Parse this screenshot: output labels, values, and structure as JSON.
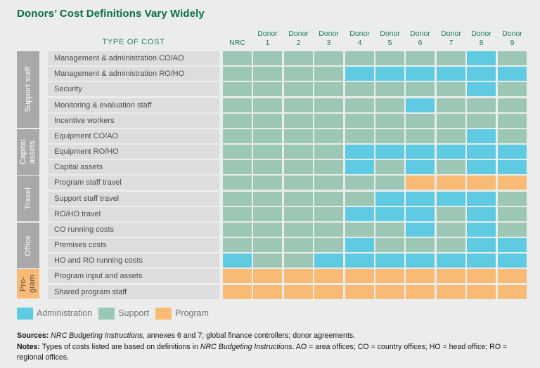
{
  "title": "Donors’ Cost Definitions Vary Widely",
  "table_header": {
    "type_of_cost": "TYPE OF COST"
  },
  "colors": {
    "administration": "#5fcbe3",
    "support": "#9bc7b4",
    "program": "#f9ba76",
    "page_bg": "#ebedec",
    "row_label_bg": "#dcdddc",
    "group_box_bg": "#a9a9a9",
    "group_box_text": "#ffffff",
    "program_group_text": "#4f4f4f",
    "title_text": "#0a6e42",
    "header_text": "#1f7b52",
    "row_label_text": "#4c4c4c",
    "legend_text": "#757575",
    "footer_text": "#141414"
  },
  "chart_data": {
    "type": "heatmap",
    "title": "Donors’ Cost Definitions Vary Widely",
    "columns": [
      "NRC",
      "Donor 1",
      "Donor 2",
      "Donor 3",
      "Donor 4",
      "Donor 5",
      "Donor 6",
      "Donor 7",
      "Donor 8",
      "Donor 9"
    ],
    "legend_position": "bottom",
    "categories_legend": [
      {
        "key": "A",
        "label": "Administration",
        "color": "#5fcbe3"
      },
      {
        "key": "S",
        "label": "Support",
        "color": "#9bc7b4"
      },
      {
        "key": "P",
        "label": "Program",
        "color": "#f9ba76"
      }
    ],
    "row_groups": [
      {
        "label": "Support staff",
        "span": 5,
        "style": "gray"
      },
      {
        "label": "Capital assets",
        "span": 3,
        "style": "gray"
      },
      {
        "label": "Travel",
        "span": 3,
        "style": "gray"
      },
      {
        "label": "Office",
        "span": 3,
        "style": "gray"
      },
      {
        "label": "Pro-gram",
        "span": 2,
        "style": "program"
      }
    ],
    "rows": [
      {
        "label": "Management & administration CO/AO",
        "group": "Support staff",
        "cells": [
          "S",
          "S",
          "S",
          "S",
          "S",
          "S",
          "S",
          "S",
          "A",
          "S"
        ]
      },
      {
        "label": "Management & administration RO/HO",
        "group": "Support staff",
        "cells": [
          "S",
          "S",
          "S",
          "S",
          "A",
          "A",
          "A",
          "A",
          "A",
          "A"
        ]
      },
      {
        "label": "Security",
        "group": "Support staff",
        "cells": [
          "S",
          "S",
          "S",
          "S",
          "S",
          "S",
          "S",
          "S",
          "A",
          "S"
        ]
      },
      {
        "label": "Monitoring & evaluation staff",
        "group": "Support staff",
        "cells": [
          "S",
          "S",
          "S",
          "S",
          "S",
          "S",
          "A",
          "S",
          "S",
          "S"
        ]
      },
      {
        "label": "Incentive workers",
        "group": "Support staff",
        "cells": [
          "S",
          "S",
          "S",
          "S",
          "S",
          "S",
          "S",
          "S",
          "S",
          "S"
        ]
      },
      {
        "label": "Equipment CO/AO",
        "group": "Capital assets",
        "cells": [
          "S",
          "S",
          "S",
          "S",
          "S",
          "S",
          "S",
          "S",
          "A",
          "S"
        ]
      },
      {
        "label": "Equipment RO/HO",
        "group": "Capital assets",
        "cells": [
          "S",
          "S",
          "S",
          "S",
          "A",
          "A",
          "A",
          "A",
          "A",
          "A"
        ]
      },
      {
        "label": "Capital assets",
        "group": "Capital assets",
        "cells": [
          "S",
          "S",
          "S",
          "S",
          "A",
          "S",
          "A",
          "S",
          "A",
          "A"
        ]
      },
      {
        "label": "Program staff travel",
        "group": "Travel",
        "cells": [
          "S",
          "S",
          "S",
          "S",
          "S",
          "S",
          "P",
          "P",
          "P",
          "P"
        ]
      },
      {
        "label": "Support staff travel",
        "group": "Travel",
        "cells": [
          "S",
          "S",
          "S",
          "S",
          "S",
          "A",
          "A",
          "A",
          "A",
          "S"
        ]
      },
      {
        "label": "RO/HO travel",
        "group": "Travel",
        "cells": [
          "S",
          "S",
          "S",
          "S",
          "A",
          "A",
          "A",
          "S",
          "A",
          "S"
        ]
      },
      {
        "label": "CO running costs",
        "group": "Office",
        "cells": [
          "S",
          "S",
          "S",
          "S",
          "S",
          "S",
          "A",
          "S",
          "A",
          "S"
        ]
      },
      {
        "label": "Premises costs",
        "group": "Office",
        "cells": [
          "S",
          "S",
          "S",
          "S",
          "A",
          "S",
          "S",
          "S",
          "A",
          "A"
        ]
      },
      {
        "label": "HO and RO running costs",
        "group": "Office",
        "cells": [
          "A",
          "S",
          "S",
          "A",
          "A",
          "A",
          "A",
          "A",
          "A",
          "A"
        ]
      },
      {
        "label": "Program input and assets",
        "group": "Program",
        "cells": [
          "P",
          "P",
          "P",
          "P",
          "P",
          "P",
          "P",
          "P",
          "P",
          "P"
        ]
      },
      {
        "label": "Shared program staff",
        "group": "Program",
        "cells": [
          "P",
          "P",
          "P",
          "P",
          "P",
          "P",
          "P",
          "P",
          "P",
          "P"
        ]
      }
    ]
  },
  "footer": {
    "sources_segments": [
      {
        "t": "Sources: ",
        "b": true
      },
      {
        "t": "NRC Budgeting Instructions",
        "i": true
      },
      {
        "t": ", annexes 6 and 7; global finance controllers; donor agreements."
      }
    ],
    "notes_segments": [
      {
        "t": "Notes: ",
        "b": true
      },
      {
        "t": "Types of costs listed are based on definitions in "
      },
      {
        "t": "NRC Budgeting Instructions",
        "i": true
      },
      {
        "t": ". AO = area offices; CO = country offices; HO = head office; RO = regional offices."
      }
    ]
  }
}
